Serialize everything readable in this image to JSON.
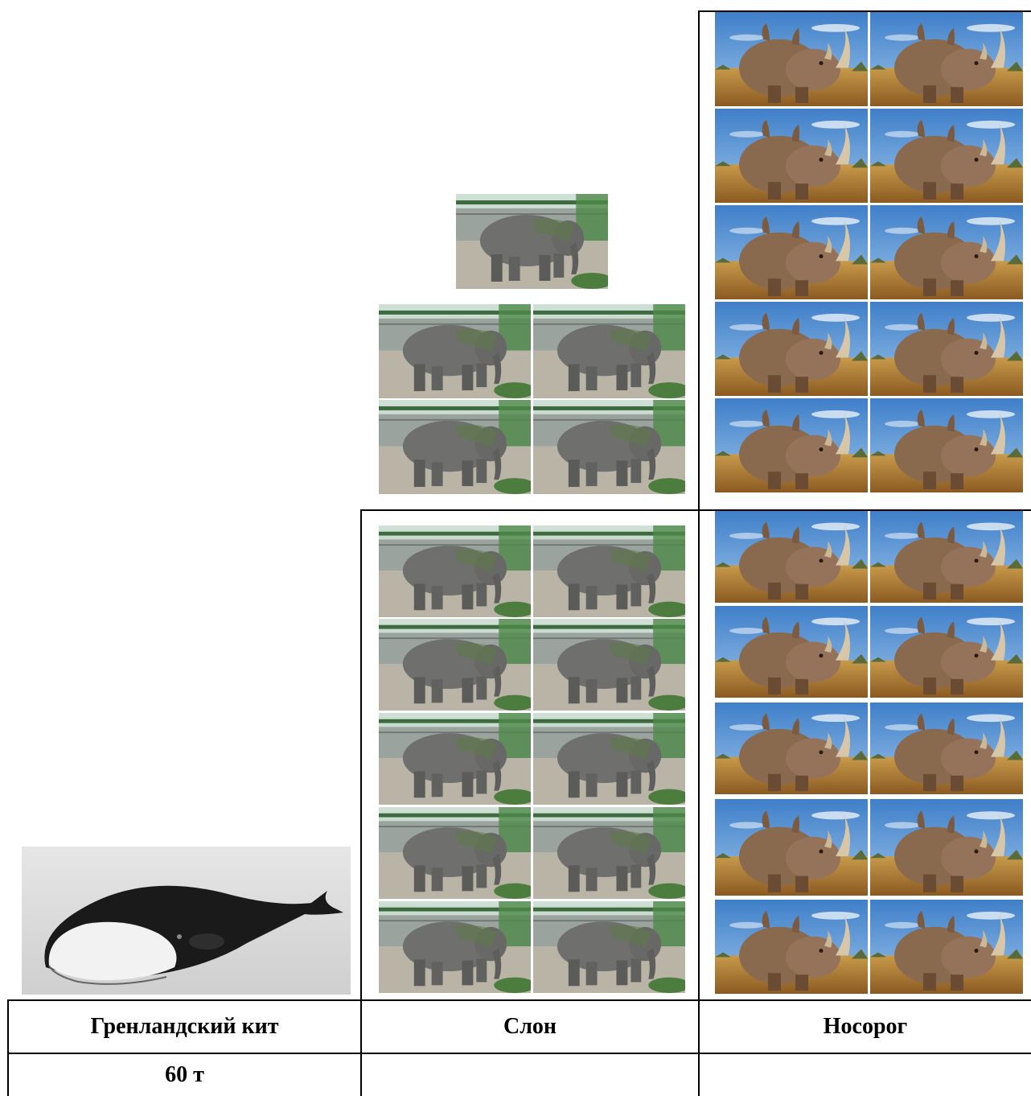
{
  "table": {
    "header": {
      "col1": "Гренландский кит",
      "col2": "Слон",
      "col3": "Носорог"
    },
    "row2": {
      "col1": "60 т",
      "col2": "",
      "col3": ""
    }
  },
  "illustrations": {
    "whale": {
      "icon": "bowhead-whale-image"
    },
    "elephant": {
      "icon": "elephant-image",
      "count_upper": 5,
      "count_lower": 10
    },
    "rhino": {
      "icon": "rhino-image",
      "count_upper": 10,
      "count_lower": 10
    }
  }
}
